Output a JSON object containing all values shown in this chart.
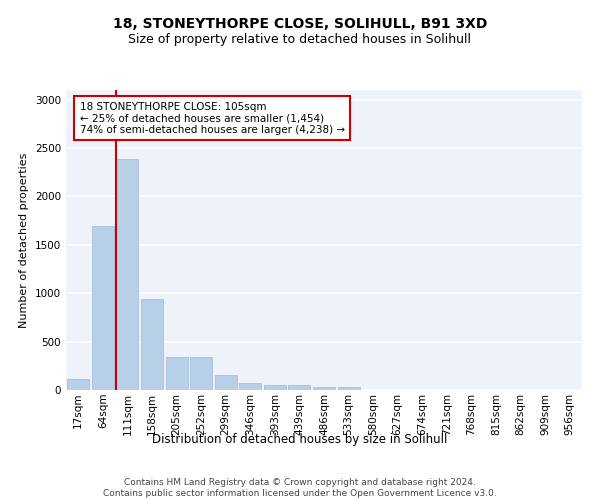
{
  "title1": "18, STONEYTHORPE CLOSE, SOLIHULL, B91 3XD",
  "title2": "Size of property relative to detached houses in Solihull",
  "xlabel": "Distribution of detached houses by size in Solihull",
  "ylabel": "Number of detached properties",
  "categories": [
    "17sqm",
    "64sqm",
    "111sqm",
    "158sqm",
    "205sqm",
    "252sqm",
    "299sqm",
    "346sqm",
    "393sqm",
    "439sqm",
    "486sqm",
    "533sqm",
    "580sqm",
    "627sqm",
    "674sqm",
    "721sqm",
    "768sqm",
    "815sqm",
    "862sqm",
    "909sqm",
    "956sqm"
  ],
  "values": [
    110,
    1690,
    2390,
    940,
    345,
    345,
    150,
    75,
    55,
    55,
    30,
    30,
    5,
    5,
    5,
    5,
    5,
    5,
    5,
    5,
    5
  ],
  "bar_color": "#b8cfe8",
  "bar_edge_color": "#9ab8d8",
  "vline_color": "#cc0000",
  "annotation_text": "18 STONEYTHORPE CLOSE: 105sqm\n← 25% of detached houses are smaller (1,454)\n74% of semi-detached houses are larger (4,238) →",
  "annotation_box_color": "#ffffff",
  "annotation_box_edge_color": "#cc0000",
  "ylim": [
    0,
    3100
  ],
  "yticks": [
    0,
    500,
    1000,
    1500,
    2000,
    2500,
    3000
  ],
  "background_color": "#eef2fa",
  "footer_text": "Contains HM Land Registry data © Crown copyright and database right 2024.\nContains public sector information licensed under the Open Government Licence v3.0.",
  "title1_fontsize": 10,
  "title2_fontsize": 9,
  "xlabel_fontsize": 8.5,
  "ylabel_fontsize": 8,
  "tick_fontsize": 7.5,
  "footer_fontsize": 6.5,
  "annotation_fontsize": 7.5
}
